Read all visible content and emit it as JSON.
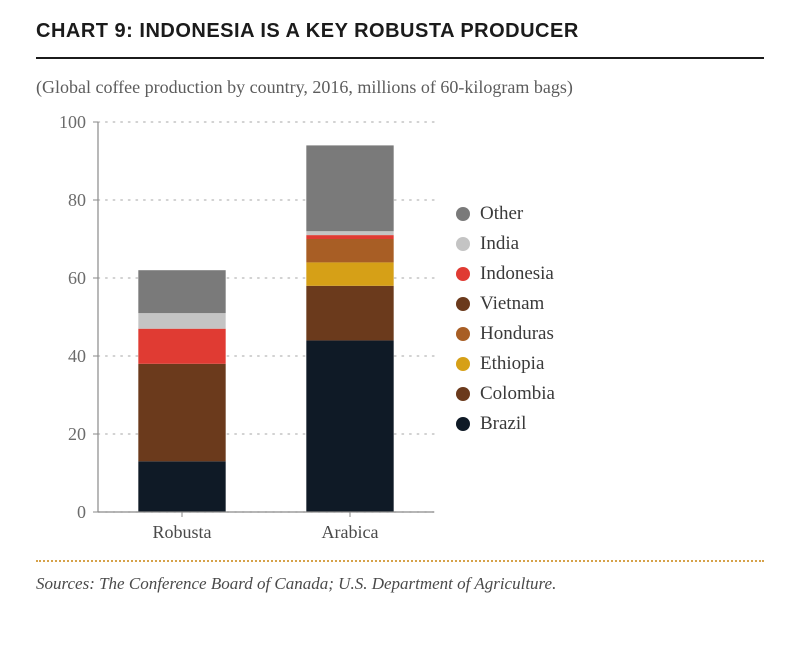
{
  "title": "CHART 9: INDONESIA IS A KEY ROBUSTA PRODUCER",
  "subtitle": "(Global coffee production by country, 2016, millions of 60-kilogram bags)",
  "sources": "Sources: The Conference Board of Canada; U.S. Department of Agriculture.",
  "chart": {
    "type": "stacked-bar",
    "background_color": "#ffffff",
    "grid_color": "#b8b8b8",
    "axis_color": "#8a8a8a",
    "tick_label_color": "#6b6b6b",
    "title_fontsize_pt": 15,
    "subtitle_fontsize_pt": 13,
    "label_fontsize_pt": 13,
    "ylim": [
      0,
      100
    ],
    "ytick_step": 20,
    "bar_width_ratio": 0.52,
    "categories": [
      "Robusta",
      "Arabica"
    ],
    "series": [
      {
        "name": "Brazil",
        "color": "#0f1a26",
        "values": [
          13,
          44
        ]
      },
      {
        "name": "Colombia",
        "color": "#6b3a1c",
        "values": [
          0,
          14
        ]
      },
      {
        "name": "Ethiopia",
        "color": "#d6a017",
        "values": [
          0,
          6
        ]
      },
      {
        "name": "Honduras",
        "color": "#a85e25",
        "values": [
          0,
          6
        ]
      },
      {
        "name": "Vietnam",
        "color": "#6b3a1c",
        "values": [
          25,
          0
        ]
      },
      {
        "name": "Indonesia",
        "color": "#e03b33",
        "values": [
          9,
          1
        ]
      },
      {
        "name": "India",
        "color": "#c4c4c4",
        "values": [
          4,
          1
        ]
      },
      {
        "name": "Other",
        "color": "#7a7a7a",
        "values": [
          11,
          22
        ]
      }
    ],
    "legend_order": [
      "Other",
      "India",
      "Indonesia",
      "Vietnam",
      "Honduras",
      "Ethiopia",
      "Colombia",
      "Brazil"
    ]
  }
}
